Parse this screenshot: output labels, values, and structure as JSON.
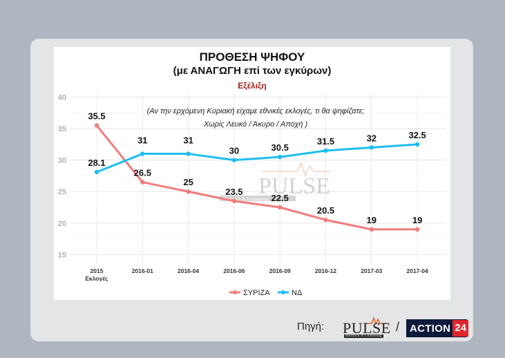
{
  "header": {
    "title": "ΠΡΟΘΕΣΗ ΨΗΦΟΥ",
    "subtitle": "(με ΑΝΑΓΩΓΗ επί των εγκύρων)",
    "subheading": "Εξέλιξη"
  },
  "question": {
    "line1": "(Αν την ερχόμενη Κυριακή είχαμε εθνικές εκλογές, τι θα ψηφίζατε;",
    "line2": "Χωρίς Λευκό / Άκυρο / Αποχή )"
  },
  "watermark": {
    "word": "PULSE",
    "sub": "Research & Consulting"
  },
  "footer": {
    "source_label": "Πηγή:",
    "pulse_word": "PULSE",
    "pulse_sub": "Research & Consulting",
    "separator": "/",
    "action_word": "ACTION",
    "action_num": "24"
  },
  "chart_data": {
    "type": "line",
    "categories": [
      "2015\nΕκλογές",
      "2016-01",
      "2016-04",
      "2016-06",
      "2016-09",
      "2016-12",
      "2017-03",
      "2017-04"
    ],
    "series": [
      {
        "name": "ΣΥΡΙΖΑ",
        "color": "#f07c7c",
        "values": [
          35.5,
          26.5,
          25,
          23.5,
          22.5,
          20.5,
          19,
          19
        ]
      },
      {
        "name": "ΝΔ",
        "color": "#1ebdf0",
        "values": [
          28.1,
          31,
          31,
          30,
          30.5,
          31.5,
          32,
          32.5
        ]
      }
    ],
    "labels": {
      "ΣΥΡΙΖΑ": [
        "35.5",
        "26.5",
        "25",
        "23.5",
        "22.5",
        "20.5",
        "19",
        "19"
      ],
      "ΝΔ": [
        "28.1",
        "31",
        "31",
        "30",
        "30.5",
        "31.5",
        "32",
        "32.5"
      ]
    },
    "yticks": [
      15,
      20,
      25,
      30,
      35,
      40
    ],
    "ylim": [
      13.5,
      40.5
    ],
    "grid": true,
    "legend": "bottom-center",
    "xlabel": "",
    "ylabel": ""
  }
}
